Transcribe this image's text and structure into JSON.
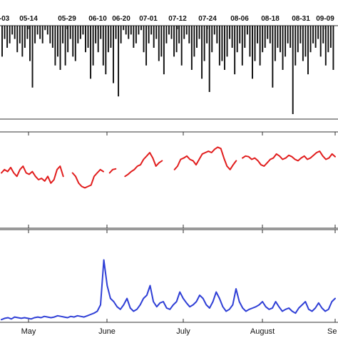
{
  "chart_data": [
    {
      "type": "bar",
      "panel": "top",
      "orientation": "downward",
      "top_axis_labels": [
        "-03",
        "05-14",
        "05-29",
        "06-10",
        "06-20",
        "07-01",
        "07-12",
        "07-24",
        "08-06",
        "08-18",
        "08-31",
        "09-09"
      ],
      "values": [
        0.35,
        0.15,
        0.25,
        0.2,
        0.1,
        0.15,
        0.3,
        0.2,
        0.35,
        0.25,
        0.15,
        0.4,
        0.7,
        0.2,
        0.1,
        0.15,
        0.2,
        0.05,
        0.1,
        0.2,
        0.25,
        0.45,
        0.35,
        0.5,
        0.2,
        0.45,
        0.3,
        0.15,
        0.35,
        0.4,
        0.2,
        0.15,
        0.1,
        0.3,
        0.25,
        0.6,
        0.45,
        0.2,
        0.3,
        0.15,
        0.45,
        0.55,
        0.3,
        0.25,
        0.65,
        0.15,
        0.8,
        0.2,
        0.05,
        0.1,
        0.15,
        0.1,
        0.25,
        0.2,
        0.1,
        0.05,
        0.3,
        0.45,
        0.2,
        0.1,
        0.25,
        0.15,
        0.4,
        0.35,
        0.55,
        0.2,
        0.1,
        0.15,
        0.35,
        0.3,
        0.2,
        0.45,
        0.15,
        0.1,
        0.2,
        0.5,
        0.35,
        0.25,
        0.15,
        0.6,
        0.4,
        0.2,
        0.75,
        0.3,
        0.1,
        0.2,
        0.45,
        0.4,
        0.5,
        0.35,
        0.15,
        0.25,
        0.55,
        0.3,
        0.2,
        0.45,
        0.25,
        0.1,
        0.35,
        0.6,
        0.4,
        0.2,
        0.45,
        0.3,
        0.25,
        0.15,
        0.2,
        0.7,
        0.4,
        0.25,
        0.3,
        0.5,
        0.35,
        0.2,
        0.25,
        1.0,
        0.45,
        0.3,
        0.2,
        0.4,
        0.35,
        0.55,
        0.3,
        0.2,
        0.25,
        0.15,
        0.35,
        0.2,
        0.45,
        0.3,
        0.25,
        0.5
      ]
    },
    {
      "type": "line",
      "panel": "middle",
      "color": "#e11d1d",
      "ylim": [
        0,
        1
      ],
      "values": [
        0.5,
        0.55,
        0.52,
        0.58,
        0.5,
        0.45,
        0.55,
        0.6,
        0.5,
        0.48,
        0.52,
        0.45,
        0.4,
        0.42,
        0.38,
        0.45,
        0.35,
        0.4,
        0.55,
        0.6,
        0.45,
        null,
        null,
        0.5,
        0.45,
        0.35,
        0.3,
        0.28,
        0.3,
        0.32,
        0.45,
        0.5,
        0.55,
        0.52,
        null,
        0.5,
        0.55,
        0.56,
        null,
        null,
        0.45,
        0.48,
        0.52,
        0.55,
        0.6,
        0.62,
        0.7,
        0.75,
        0.8,
        0.72,
        0.6,
        0.65,
        0.68,
        null,
        null,
        null,
        0.55,
        0.6,
        0.7,
        0.72,
        0.75,
        0.7,
        0.68,
        0.62,
        0.7,
        0.78,
        0.8,
        0.82,
        0.8,
        0.85,
        0.88,
        0.86,
        0.72,
        0.6,
        0.55,
        0.62,
        0.68,
        null,
        0.72,
        0.75,
        0.74,
        0.7,
        0.72,
        0.68,
        0.62,
        0.6,
        0.65,
        0.7,
        0.72,
        0.78,
        0.75,
        0.7,
        0.72,
        0.76,
        0.74,
        0.7,
        0.68,
        0.72,
        0.75,
        0.7,
        0.72,
        0.76,
        0.8,
        0.82,
        0.75,
        0.7,
        0.72,
        0.78,
        0.74
      ]
    },
    {
      "type": "line",
      "panel": "bottom",
      "color": "#2f3fd6",
      "ylim": [
        0,
        1
      ],
      "x_tick_labels": [
        "May",
        "June",
        "July",
        "August",
        "Se"
      ],
      "values": [
        0.02,
        0.04,
        0.05,
        0.03,
        0.06,
        0.05,
        0.04,
        0.05,
        0.04,
        0.03,
        0.05,
        0.06,
        0.05,
        0.07,
        0.06,
        0.05,
        0.06,
        0.08,
        0.07,
        0.06,
        0.05,
        0.07,
        0.06,
        0.08,
        0.07,
        0.06,
        0.08,
        0.1,
        0.12,
        0.15,
        0.25,
        0.95,
        0.55,
        0.35,
        0.3,
        0.22,
        0.18,
        0.25,
        0.35,
        0.2,
        0.15,
        0.18,
        0.25,
        0.35,
        0.4,
        0.55,
        0.3,
        0.22,
        0.28,
        0.3,
        0.2,
        0.18,
        0.25,
        0.3,
        0.45,
        0.35,
        0.28,
        0.22,
        0.25,
        0.3,
        0.4,
        0.35,
        0.25,
        0.2,
        0.3,
        0.45,
        0.35,
        0.22,
        0.15,
        0.18,
        0.25,
        0.5,
        0.3,
        0.2,
        0.15,
        0.18,
        0.2,
        0.22,
        0.25,
        0.3,
        0.22,
        0.18,
        0.2,
        0.3,
        0.22,
        0.15,
        0.18,
        0.2,
        0.15,
        0.12,
        0.2,
        0.25,
        0.3,
        0.18,
        0.15,
        0.2,
        0.28,
        0.2,
        0.15,
        0.18,
        0.3,
        0.35
      ]
    }
  ]
}
